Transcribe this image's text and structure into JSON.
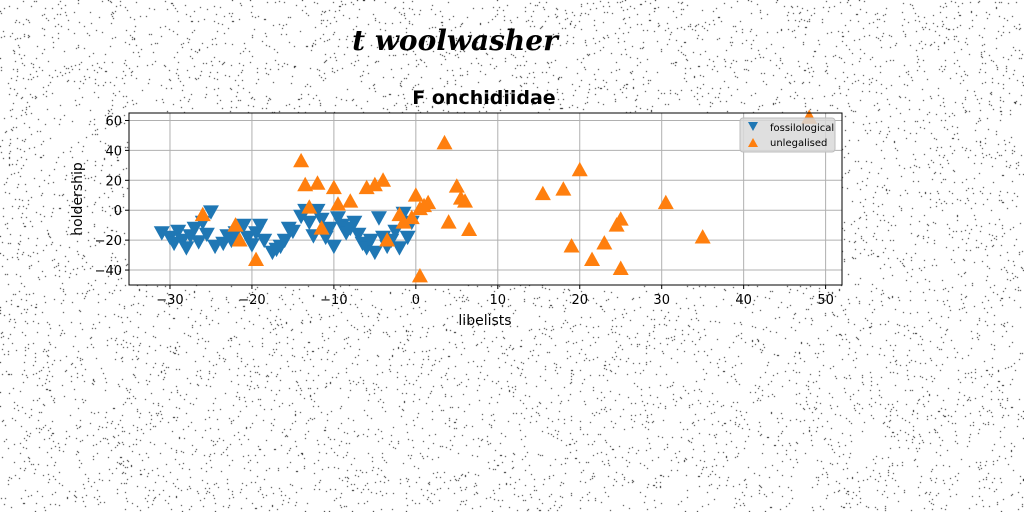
{
  "page": {
    "header_title": "t woolwasher"
  },
  "chart_data": {
    "type": "scatter",
    "title": "F onchidiidae",
    "xlabel": "libelists",
    "ylabel": "holdership",
    "xlim": [
      -35,
      52
    ],
    "ylim": [
      -50,
      65
    ],
    "xticks": [
      -30,
      -20,
      -10,
      0,
      10,
      20,
      30,
      40,
      50
    ],
    "yticks": [
      -40,
      -20,
      0,
      20,
      40,
      60
    ],
    "grid": true,
    "legend_position": "top-right",
    "series": [
      {
        "name": "fossilological",
        "marker": "triangle-down",
        "color": "#1f77b4",
        "points": [
          [
            -31,
            -15
          ],
          [
            -30,
            -18
          ],
          [
            -29.5,
            -22
          ],
          [
            -29,
            -14
          ],
          [
            -28.5,
            -20
          ],
          [
            -28,
            -25
          ],
          [
            -27.5,
            -17
          ],
          [
            -27,
            -12
          ],
          [
            -26.5,
            -21
          ],
          [
            -26,
            -8
          ],
          [
            -25.5,
            -16
          ],
          [
            -25,
            -1
          ],
          [
            -24.5,
            -24
          ],
          [
            -23.5,
            -22
          ],
          [
            -23,
            -17
          ],
          [
            -22.5,
            -20
          ],
          [
            -22,
            -15
          ],
          [
            -21,
            -10
          ],
          [
            -20.5,
            -18
          ],
          [
            -20,
            -23
          ],
          [
            -19.5,
            -15
          ],
          [
            -19,
            -10
          ],
          [
            -18.5,
            -20
          ],
          [
            -17.5,
            -28
          ],
          [
            -17,
            -26
          ],
          [
            -16.5,
            -24
          ],
          [
            -16,
            -20
          ],
          [
            -15.5,
            -12
          ],
          [
            -15,
            -14
          ],
          [
            -14,
            -4
          ],
          [
            -13.5,
            0
          ],
          [
            -13,
            -8
          ],
          [
            -12.5,
            -17
          ],
          [
            -12,
            0
          ],
          [
            -11.5,
            -6
          ],
          [
            -11,
            -18
          ],
          [
            -10.5,
            -12
          ],
          [
            -10,
            -24
          ],
          [
            -9.5,
            -5
          ],
          [
            -9,
            -10
          ],
          [
            -8.5,
            -15
          ],
          [
            -8,
            -12
          ],
          [
            -7.5,
            -8
          ],
          [
            -7,
            -16
          ],
          [
            -6.5,
            -22
          ],
          [
            -6,
            -25
          ],
          [
            -5.5,
            -20
          ],
          [
            -5,
            -28
          ],
          [
            -4.5,
            -5
          ],
          [
            -4,
            -18
          ],
          [
            -3.5,
            -24
          ],
          [
            -3,
            -20
          ],
          [
            -2.5,
            -14
          ],
          [
            -2,
            -25
          ],
          [
            -1.5,
            -2
          ],
          [
            -1,
            -18
          ],
          [
            -0.5,
            -8
          ]
        ]
      },
      {
        "name": "unlegalised",
        "marker": "triangle-up",
        "color": "#ff7f0e",
        "points": [
          [
            -26,
            -3
          ],
          [
            -22,
            -10
          ],
          [
            -21.5,
            -20
          ],
          [
            -19.5,
            -33
          ],
          [
            -14,
            33
          ],
          [
            -13.5,
            17
          ],
          [
            -13,
            2
          ],
          [
            -12,
            18
          ],
          [
            -11.5,
            -12
          ],
          [
            -10,
            15
          ],
          [
            -9.5,
            4
          ],
          [
            -8,
            6
          ],
          [
            -6,
            15
          ],
          [
            -5,
            17
          ],
          [
            -4,
            20
          ],
          [
            -3.5,
            -20
          ],
          [
            -2,
            -3
          ],
          [
            -1.5,
            -8
          ],
          [
            -0.5,
            -5
          ],
          [
            0,
            10
          ],
          [
            0.5,
            1
          ],
          [
            1,
            3
          ],
          [
            1.5,
            5
          ],
          [
            3.5,
            45
          ],
          [
            4,
            -8
          ],
          [
            5,
            16
          ],
          [
            5.5,
            8
          ],
          [
            6,
            6
          ],
          [
            6.5,
            -13
          ],
          [
            0.5,
            -44
          ],
          [
            15.5,
            11
          ],
          [
            18,
            14
          ],
          [
            19,
            -24
          ],
          [
            20,
            27
          ],
          [
            21.5,
            -33
          ],
          [
            23,
            -22
          ],
          [
            24.5,
            -10
          ],
          [
            25,
            -6
          ],
          [
            25,
            -39
          ],
          [
            30.5,
            5
          ],
          [
            35,
            -18
          ],
          [
            48,
            62
          ]
        ]
      }
    ]
  }
}
